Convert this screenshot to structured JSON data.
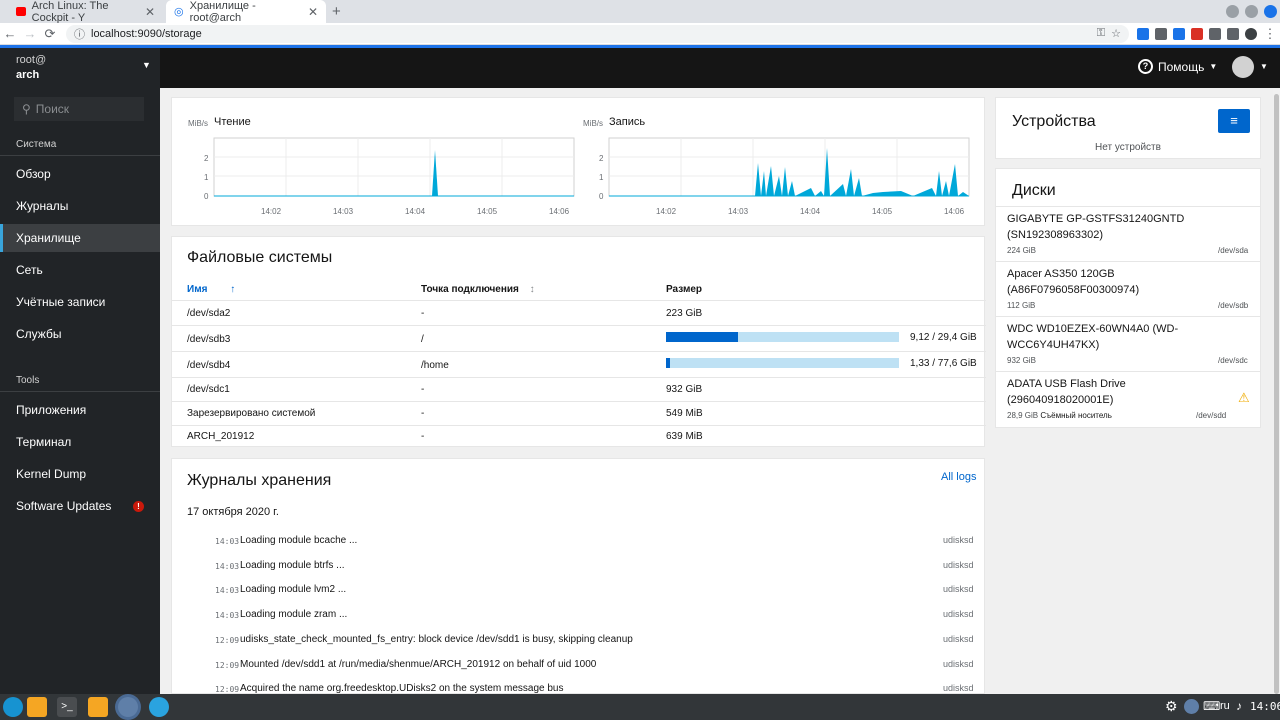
{
  "browser": {
    "tabs": [
      {
        "title": "Arch Linux: The Cockpit - Y"
      },
      {
        "title": "Хранилище - root@arch"
      }
    ],
    "url": "localhost:9090/storage"
  },
  "sidebar": {
    "user": "root@",
    "host": "arch",
    "search_placeholder": "Поиск",
    "section_system": "Система",
    "items_system": [
      "Обзор",
      "Журналы",
      "Хранилище",
      "Сеть",
      "Учётные записи",
      "Службы"
    ],
    "section_tools": "Tools",
    "items_tools": [
      "Приложения",
      "Терминал",
      "Kernel Dump",
      "Software Updates"
    ]
  },
  "topnav": {
    "help": "Помощь"
  },
  "charts": {
    "read": {
      "unit": "MiB/s",
      "title": "Чтение",
      "yticks": [
        "2",
        "1",
        "0"
      ],
      "xticks": [
        "14:02",
        "14:03",
        "14:04",
        "14:05",
        "14:06"
      ]
    },
    "write": {
      "unit": "MiB/s",
      "title": "Запись",
      "yticks": [
        "2",
        "1",
        "0"
      ],
      "xticks": [
        "14:02",
        "14:03",
        "14:04",
        "14:05",
        "14:06"
      ]
    }
  },
  "filesystems": {
    "title": "Файловые системы",
    "headers": [
      "Имя",
      "Точка подключения",
      "Размер"
    ],
    "rows": [
      {
        "name": "/dev/sda2",
        "mount": "-",
        "size": "223 GiB"
      },
      {
        "name": "/dev/sdb3",
        "mount": "/",
        "size": "9,12 / 29,4 GiB",
        "usage": 0.31
      },
      {
        "name": "/dev/sdb4",
        "mount": "/home",
        "size": "1,33 / 77,6 GiB",
        "usage": 0.017
      },
      {
        "name": "/dev/sdc1",
        "mount": "-",
        "size": "932 GiB"
      },
      {
        "name": "Зарезервировано системой",
        "mount": "-",
        "size": "549 MiB"
      },
      {
        "name": "ARCH_201912",
        "mount": "-",
        "size": "639 MiB"
      }
    ]
  },
  "logs": {
    "title": "Журналы хранения",
    "all_logs": "All logs",
    "date": "17 октября 2020 г.",
    "entries": [
      {
        "time": "14:03",
        "msg": "Loading module bcache ...",
        "src": "udisksd"
      },
      {
        "time": "14:03",
        "msg": "Loading module btrfs ...",
        "src": "udisksd"
      },
      {
        "time": "14:03",
        "msg": "Loading module lvm2 ...",
        "src": "udisksd"
      },
      {
        "time": "14:03",
        "msg": "Loading module zram ...",
        "src": "udisksd"
      },
      {
        "time": "12:09",
        "msg": "udisks_state_check_mounted_fs_entry: block device /dev/sdd1 is busy, skipping cleanup",
        "src": "udisksd"
      },
      {
        "time": "12:09",
        "msg": "Mounted /dev/sdd1 at /run/media/shenmue/ARCH_201912 on behalf of uid 1000",
        "src": "udisksd"
      },
      {
        "time": "12:09",
        "msg": "Acquired the name org.freedesktop.UDisks2 on the system message bus",
        "src": "udisksd"
      }
    ]
  },
  "devices": {
    "title": "Устройства",
    "empty": "Нет устройств"
  },
  "disks": {
    "title": "Диски",
    "items": [
      {
        "name1": "GIGABYTE GP-GSTFS31240GNTD",
        "name2": "(SN192308963302)",
        "size": "224 GiB",
        "dev": "/dev/sda"
      },
      {
        "name1": "Apacer AS350 120GB",
        "name2": "(A86F0796058F00300974)",
        "size": "112 GiB",
        "dev": "/dev/sdb"
      },
      {
        "name1": "WDC WD10EZEX-60WN4A0 (WD-",
        "name2": "WCC6Y4UH47KX)",
        "size": "932 GiB",
        "dev": "/dev/sdc"
      },
      {
        "name1": "ADATA USB Flash Drive",
        "name2": "(296040918020001E)",
        "size": "28,9 GiB",
        "extra": "Съёмный носитель",
        "dev": "/dev/sdd"
      }
    ]
  },
  "taskbar": {
    "lang": "ru",
    "time": "14:06"
  },
  "colors": {
    "accent": "#0066cc",
    "chart": "#00a8d9",
    "warning": "#f0ab00",
    "danger": "#c9190b"
  }
}
